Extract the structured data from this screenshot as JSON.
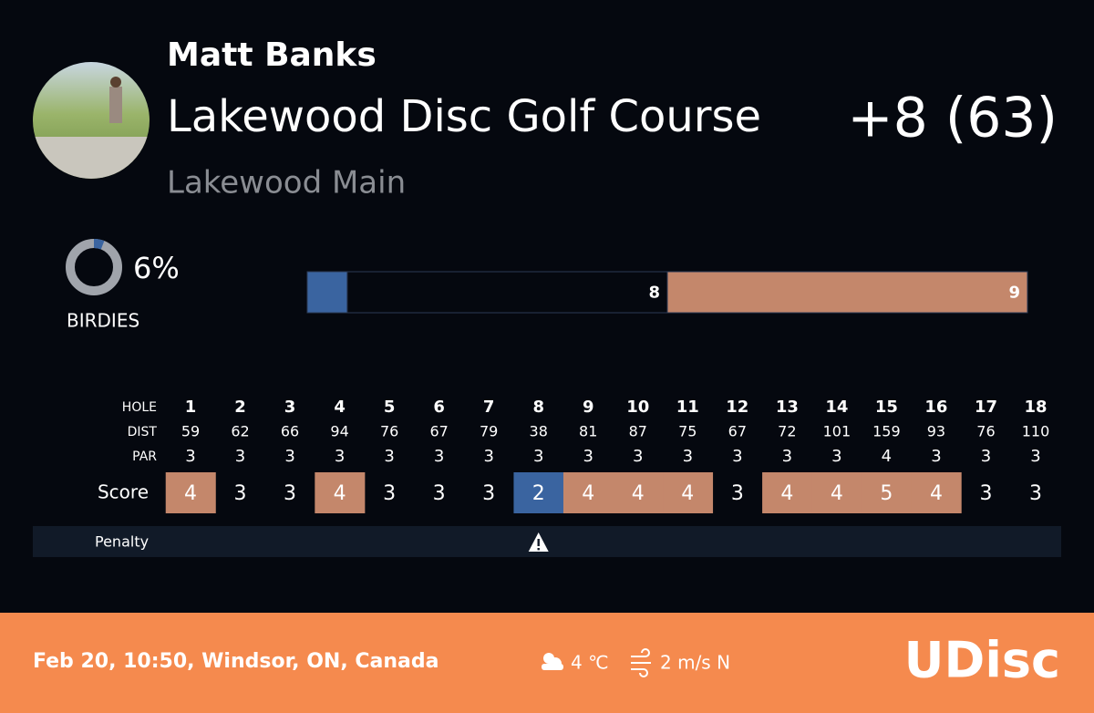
{
  "header": {
    "player": "Matt Banks",
    "course": "Lakewood Disc Golf Course",
    "layout": "Lakewood Main",
    "score": "+8 (63)"
  },
  "birdies": {
    "value": 6,
    "label": "6%",
    "title": "BIRDIES"
  },
  "distribution": {
    "segments": [
      {
        "value": 1,
        "color": "#3a64a0"
      },
      {
        "value": 8,
        "label": "8",
        "color": "#05080f"
      },
      {
        "value": 9,
        "label": "9",
        "color": "#c4876b"
      }
    ]
  },
  "scorecard": {
    "row_labels": {
      "hole": "HOLE",
      "dist": "DIST",
      "par": "PAR",
      "score": "Score"
    },
    "holes": [
      "1",
      "2",
      "3",
      "4",
      "5",
      "6",
      "7",
      "8",
      "9",
      "10",
      "11",
      "12",
      "13",
      "14",
      "15",
      "16",
      "17",
      "18"
    ],
    "dist": [
      59,
      62,
      66,
      94,
      76,
      67,
      79,
      38,
      81,
      87,
      75,
      67,
      72,
      101,
      159,
      93,
      76,
      110
    ],
    "par": [
      3,
      3,
      3,
      3,
      3,
      3,
      3,
      3,
      3,
      3,
      3,
      3,
      3,
      3,
      4,
      3,
      3,
      3
    ],
    "score": [
      4,
      3,
      3,
      4,
      3,
      3,
      3,
      2,
      4,
      4,
      4,
      3,
      4,
      4,
      5,
      4,
      3,
      3
    ],
    "over_color": "#c4876b",
    "under_color": "#3a64a0"
  },
  "penalty": {
    "label": "Penalty",
    "holes": [
      8
    ]
  },
  "footer": {
    "info": "Feb 20, 10:50, Windsor, ON, Canada",
    "temperature": "4 ℃",
    "wind": "2 m/s N",
    "logo": "UDisc"
  }
}
